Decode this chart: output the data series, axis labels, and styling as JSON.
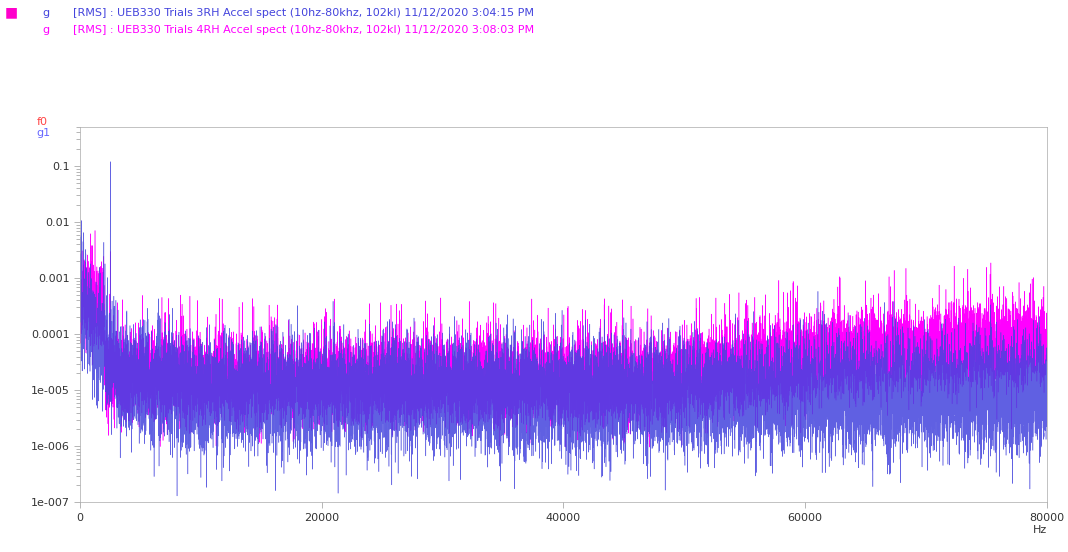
{
  "title1": "[RMS] : UEB330 Trials 3RH Accel spect (10hz-80khz, 102kl) 11/12/2020 3:04:15 PM",
  "title2": "[RMS] : UEB330 Trials 4RH Accel spect (10hz-80khz, 102kl) 11/12/2020 3:08:03 PM",
  "unit1": "g",
  "unit2": "g",
  "color1": "#4444dd",
  "color2": "#ff00ff",
  "legend_marker_color": "#ff00cc",
  "xlabel": "Hz",
  "xmin": 0,
  "xmax": 80000,
  "ymin": 1e-07,
  "ymax": 0.5,
  "background_color": "#ffffff",
  "annotation1_text": "f0",
  "annotation1_color": "#ff4444",
  "annotation2_text": "g1",
  "annotation2_color": "#6666ff",
  "spike_freq": 2500,
  "spike_value_blue": 0.12,
  "spike_value_pink": 0.003,
  "N": 16000
}
